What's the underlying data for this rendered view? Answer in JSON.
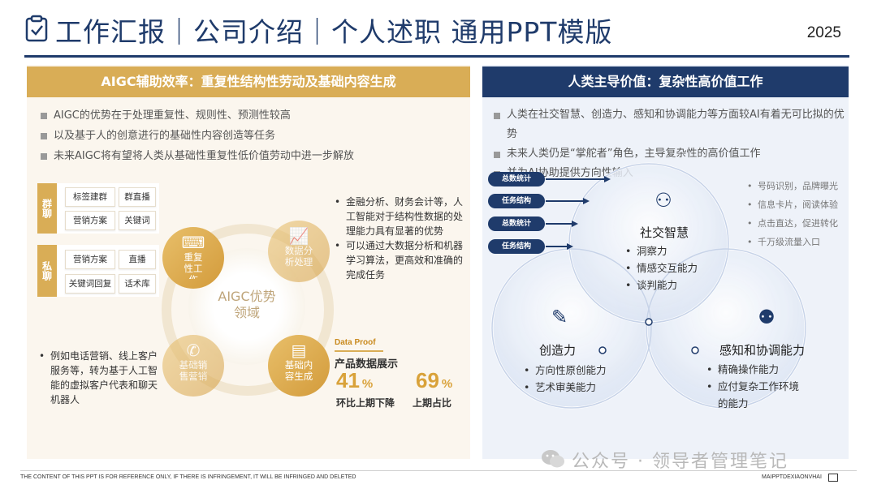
{
  "header": {
    "title": "工作汇报｜公司介绍｜个人述职 通用PPT模版",
    "year": "2025"
  },
  "left": {
    "heading": "AIGC辅助效率：重复性结构性劳动及基础内容生成",
    "bullets": [
      "AIGC的优势在于处理重复性、规则性、预测性较高",
      "以及基于人的创意进行的基础性内容创造等任务",
      "未来AIGC将有望将人类从基础性重复性低价值劳动中进一步解放"
    ],
    "group_chat": {
      "label": "群聊",
      "tags": [
        "标签建群",
        "群直播",
        "营销方案",
        "关键词"
      ]
    },
    "private_chat": {
      "label": "私聊",
      "tags": [
        "营销方案",
        "直播",
        "关键词回复",
        "话术库"
      ]
    },
    "center": "AIGC优势\n领域",
    "circles": [
      {
        "label": "重复\n性工\n作",
        "icon": "person-laptop-icon"
      },
      {
        "label": "数据分\n析处理",
        "icon": "chart-icon"
      },
      {
        "label": "基础销\n售营销",
        "icon": "phone-icon"
      },
      {
        "label": "基础内\n容生成",
        "icon": "document-icon"
      }
    ],
    "right_text": [
      "金融分析、财务会计等，人工智能对于结构性数据的处理能力具有显著的优势",
      "可以通过大数据分析和机器学习算法，更高效和准确的完成任务"
    ],
    "bottom_text": "例如电话营销、线上客户服务等，转为基于人工智能的虚拟客户代表和聊天机器人",
    "proof": {
      "title": "Data Proof",
      "subtitle": "产品数据展示",
      "stats": [
        {
          "value": "41",
          "unit": "%",
          "label": "环比上期下降"
        },
        {
          "value": "69",
          "unit": "%",
          "label": "上期占比"
        }
      ]
    }
  },
  "right": {
    "heading": "人类主导价值：复杂性高价值工作",
    "bullets": [
      "人类在社交智慧、创造力、感知和协调能力等方面较AI有着无可比拟的优势",
      "未来人类仍是“掌舵者”角色，主导复杂性的高价值工作",
      "并为AI协助提供方向性输入"
    ],
    "pills": [
      "总数统计",
      "任务结构",
      "总数统计",
      "任务结构"
    ],
    "social": {
      "title": "社交智慧",
      "items": [
        "洞察力",
        "情感交互能力",
        "谈判能力"
      ]
    },
    "creativity": {
      "title": "创造力",
      "items": [
        "方向性原创能力",
        "艺术审美能力"
      ]
    },
    "perception": {
      "title": "感知和协调能力",
      "items": [
        "精确操作能力",
        "应付复杂工作环境的能力"
      ]
    },
    "side_list": [
      "号码识别，品牌曝光",
      "信息卡片，阅读体验",
      "点击直达，促进转化",
      "千万级流量入口"
    ]
  },
  "footer": {
    "left": "THE CONTENT OF THIS PPT IS FOR REFERENCE ONLY, IF THERE IS INFRINGEMENT, IT WILL BE INFRINGED AND DELETED",
    "right": "MAIPPTDEXIAONVHAI",
    "watermark": "公众号 · 领导者管理笔记"
  },
  "colors": {
    "navy": "#1f3b6b",
    "gold": "#d9ad56",
    "cream": "#fbf6ee",
    "light_blue": "#eef2f9"
  }
}
